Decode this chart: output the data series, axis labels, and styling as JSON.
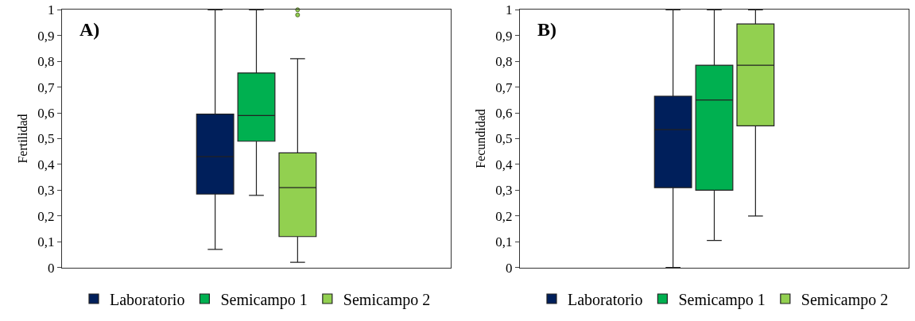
{
  "chart_data": [
    {
      "type": "box",
      "annotations": [
        "A)"
      ],
      "ylabel": "Fertilidad",
      "categories": [
        null
      ],
      "ylim": [
        0,
        1
      ],
      "yticks": [
        {
          "value": 0,
          "label": "0"
        },
        {
          "value": 0.1,
          "label": "0,1"
        },
        {
          "value": 0.2,
          "label": "0,2"
        },
        {
          "value": 0.3,
          "label": "0,3"
        },
        {
          "value": 0.4,
          "label": "0,4"
        },
        {
          "value": 0.5,
          "label": "0,5"
        },
        {
          "value": 0.6,
          "label": "0,6"
        },
        {
          "value": 0.7,
          "label": "0,7"
        },
        {
          "value": 0.8,
          "label": "0,8"
        },
        {
          "value": 0.9,
          "label": "0,9"
        },
        {
          "value": 1,
          "label": "1"
        }
      ],
      "grid": false,
      "legend": "bottom",
      "tick_labels": "y",
      "series": [
        {
          "name": "Laboratorio",
          "color": "#001f5b",
          "boxes": [
            {
              "low": 0.07,
              "q1": 0.285,
              "median": 0.43,
              "q3": 0.595,
              "high": 1.0
            }
          ]
        },
        {
          "name": "Semicampo 1",
          "color": "#00b050",
          "boxes": [
            {
              "low": 0.28,
              "q1": 0.49,
              "median": 0.59,
              "q3": 0.755,
              "high": 1.0
            }
          ]
        },
        {
          "name": "Semicampo 2",
          "color": "#92d050",
          "boxes": [
            {
              "low": 0.02,
              "q1": 0.12,
              "median": 0.31,
              "q3": 0.445,
              "high": 0.81,
              "outliers": [
                1.0,
                0.98
              ]
            }
          ]
        }
      ]
    },
    {
      "type": "box",
      "annotations": [
        "B)"
      ],
      "ylabel": "Fecundidad",
      "categories": [
        null
      ],
      "ylim": [
        0,
        1
      ],
      "yticks": [
        {
          "value": 0,
          "label": "0"
        },
        {
          "value": 0.1,
          "label": "0,1"
        },
        {
          "value": 0.2,
          "label": "0,2"
        },
        {
          "value": 0.3,
          "label": "0,3"
        },
        {
          "value": 0.4,
          "label": "0,4"
        },
        {
          "value": 0.5,
          "label": "0,5"
        },
        {
          "value": 0.6,
          "label": "0,6"
        },
        {
          "value": 0.7,
          "label": "0,7"
        },
        {
          "value": 0.8,
          "label": "0,8"
        },
        {
          "value": 0.9,
          "label": "0,9"
        },
        {
          "value": 1,
          "label": "1"
        }
      ],
      "grid": false,
      "legend": "bottom",
      "tick_labels": "y",
      "series": [
        {
          "name": "Laboratorio",
          "color": "#001f5b",
          "boxes": [
            {
              "low": 0.0,
              "q1": 0.31,
              "median": 0.535,
              "q3": 0.665,
              "high": 1.0
            }
          ]
        },
        {
          "name": "Semicampo 1",
          "color": "#00b050",
          "boxes": [
            {
              "low": 0.105,
              "q1": 0.3,
              "median": 0.65,
              "q3": 0.785,
              "high": 1.0
            }
          ]
        },
        {
          "name": "Semicampo 2",
          "color": "#92d050",
          "boxes": [
            {
              "low": 0.2,
              "q1": 0.55,
              "median": 0.785,
              "q3": 0.945,
              "high": 1.0
            }
          ]
        }
      ]
    }
  ]
}
